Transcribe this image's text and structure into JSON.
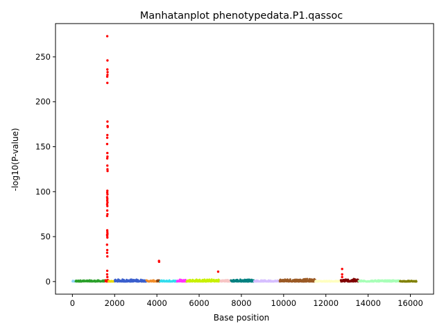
{
  "chart_data": {
    "type": "scatter",
    "title": "Manhatanplot phenotypedata.P1.qassoc",
    "xlabel": "Base position",
    "ylabel": "-log10(P-value)",
    "xlim": [
      -800,
      17100
    ],
    "ylim": [
      -14,
      287
    ],
    "x_ticks": [
      0,
      2000,
      4000,
      6000,
      8000,
      10000,
      12000,
      14000,
      16000
    ],
    "y_ticks": [
      0,
      50,
      100,
      150,
      200,
      250
    ],
    "grid": false,
    "legend": "none",
    "segments": [
      {
        "range": [
          0,
          150
        ],
        "color": "#8fd3f5",
        "low_max": 1.0
      },
      {
        "range": [
          150,
          1560
        ],
        "color": "#2ca02c",
        "low_max": 1.5
      },
      {
        "range": [
          1560,
          1700
        ],
        "color": "#ff0000",
        "low_max": 2.0
      },
      {
        "range": [
          1700,
          2000
        ],
        "color": "#e8d800",
        "low_max": 1.0
      },
      {
        "range": [
          2000,
          3500
        ],
        "color": "#3a5fcd",
        "low_max": 2.5
      },
      {
        "range": [
          3500,
          4000
        ],
        "color": "#f28e2b",
        "low_max": 1.5
      },
      {
        "range": [
          4000,
          4150
        ],
        "color": "#8b4513",
        "low_max": 1.5
      },
      {
        "range": [
          4150,
          4950
        ],
        "color": "#33ddee",
        "low_max": 1.5
      },
      {
        "range": [
          4950,
          5400
        ],
        "color": "#ff33ff",
        "low_max": 2.5
      },
      {
        "range": [
          5400,
          7000
        ],
        "color": "#c8f000",
        "low_max": 2.5
      },
      {
        "range": [
          7000,
          7500
        ],
        "color": "#f7c5c5",
        "low_max": 2.0
      },
      {
        "range": [
          7500,
          8600
        ],
        "color": "#008080",
        "low_max": 2.5
      },
      {
        "range": [
          8600,
          9800
        ],
        "color": "#d6bfff",
        "low_max": 1.5
      },
      {
        "range": [
          9800,
          11500
        ],
        "color": "#9b5a25",
        "low_max": 3.0
      },
      {
        "range": [
          11500,
          12700
        ],
        "color": "#ffffc0",
        "low_max": 1.0
      },
      {
        "range": [
          12700,
          13550
        ],
        "color": "#800000",
        "low_max": 3.0
      },
      {
        "range": [
          13550,
          15500
        ],
        "color": "#a8ffb8",
        "low_max": 1.5
      },
      {
        "range": [
          15500,
          16300
        ],
        "color": "#808000",
        "low_max": 1.0
      }
    ],
    "highlight_points": [
      {
        "x": 1650,
        "y": 273
      },
      {
        "x": 1660,
        "y": 246
      },
      {
        "x": 1655,
        "y": 236
      },
      {
        "x": 1665,
        "y": 233
      },
      {
        "x": 1660,
        "y": 230
      },
      {
        "x": 1650,
        "y": 228
      },
      {
        "x": 1655,
        "y": 221
      },
      {
        "x": 1660,
        "y": 178
      },
      {
        "x": 1665,
        "y": 173
      },
      {
        "x": 1670,
        "y": 172
      },
      {
        "x": 1655,
        "y": 163
      },
      {
        "x": 1650,
        "y": 160
      },
      {
        "x": 1645,
        "y": 153
      },
      {
        "x": 1655,
        "y": 143
      },
      {
        "x": 1660,
        "y": 139
      },
      {
        "x": 1650,
        "y": 137
      },
      {
        "x": 1655,
        "y": 129
      },
      {
        "x": 1660,
        "y": 125
      },
      {
        "x": 1665,
        "y": 123
      },
      {
        "x": 1655,
        "y": 101
      },
      {
        "x": 1650,
        "y": 99
      },
      {
        "x": 1660,
        "y": 97
      },
      {
        "x": 1645,
        "y": 94
      },
      {
        "x": 1655,
        "y": 92
      },
      {
        "x": 1650,
        "y": 90
      },
      {
        "x": 1660,
        "y": 88
      },
      {
        "x": 1645,
        "y": 86
      },
      {
        "x": 1655,
        "y": 84
      },
      {
        "x": 1650,
        "y": 79
      },
      {
        "x": 1660,
        "y": 75
      },
      {
        "x": 1645,
        "y": 73
      },
      {
        "x": 1650,
        "y": 57
      },
      {
        "x": 1655,
        "y": 55
      },
      {
        "x": 1660,
        "y": 53
      },
      {
        "x": 1645,
        "y": 52
      },
      {
        "x": 1650,
        "y": 51
      },
      {
        "x": 1655,
        "y": 49
      },
      {
        "x": 1640,
        "y": 41
      },
      {
        "x": 1650,
        "y": 35
      },
      {
        "x": 1645,
        "y": 32
      },
      {
        "x": 1655,
        "y": 28
      },
      {
        "x": 1650,
        "y": 12
      },
      {
        "x": 1645,
        "y": 8
      },
      {
        "x": 1655,
        "y": 5
      },
      {
        "x": 4100,
        "y": 23
      },
      {
        "x": 4105,
        "y": 22
      },
      {
        "x": 6900,
        "y": 11
      },
      {
        "x": 12770,
        "y": 14
      },
      {
        "x": 12770,
        "y": 8
      },
      {
        "x": 12770,
        "y": 5
      }
    ]
  }
}
